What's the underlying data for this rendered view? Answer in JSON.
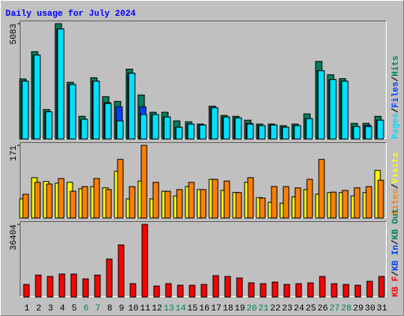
{
  "chart_data": [
    {
      "type": "bar",
      "title": "Daily usage for July 2024",
      "separator": "/",
      "ylim": [
        0,
        5083
      ],
      "yticks": [
        5083
      ],
      "series": [
        {
          "name": "Hits",
          "color": "#00805c",
          "values": [
            2650,
            3850,
            1300,
            5083,
            2500,
            1000,
            2700,
            1870,
            1660,
            3080,
            1940,
            1180,
            1180,
            800,
            760,
            660,
            1450,
            1040,
            1000,
            830,
            660,
            660,
            590,
            660,
            1110,
            3420,
            2830,
            2660,
            690,
            690,
            1000
          ]
        },
        {
          "name": "Files",
          "color": "#0040ff",
          "values": [
            2550,
            3700,
            1200,
            4850,
            2400,
            870,
            2550,
            1600,
            1420,
            2900,
            1420,
            1080,
            970,
            520,
            660,
            620,
            1380,
            970,
            930,
            690,
            590,
            620,
            520,
            590,
            900,
            3010,
            2620,
            2550,
            550,
            600,
            830
          ]
        },
        {
          "name": "Pages",
          "color": "#00e0ff",
          "values": [
            2550,
            3700,
            1200,
            4850,
            2400,
            870,
            2550,
            1570,
            800,
            2900,
            1080,
            1080,
            970,
            520,
            660,
            620,
            1380,
            970,
            930,
            660,
            590,
            620,
            520,
            590,
            900,
            3010,
            2620,
            2550,
            550,
            550,
            830
          ]
        }
      ]
    },
    {
      "type": "bar",
      "separator": "/",
      "ylim": [
        0,
        171
      ],
      "yticks": [
        171
      ],
      "series": [
        {
          "name": "Visits",
          "color": "#ffff00",
          "values": [
            45,
            95,
            86,
            82,
            84,
            69,
            74,
            71,
            110,
            45,
            87,
            45,
            63,
            52,
            74,
            67,
            91,
            65,
            60,
            84,
            48,
            37,
            35,
            50,
            67,
            56,
            60,
            60,
            52,
            60,
            112
          ]
        },
        {
          "name": "Sites",
          "color": "#ff8000",
          "values": [
            56,
            84,
            80,
            93,
            63,
            74,
            93,
            67,
            138,
            74,
            171,
            84,
            63,
            67,
            84,
            67,
            91,
            87,
            60,
            95,
            47,
            74,
            74,
            71,
            91,
            138,
            61,
            65,
            71,
            74,
            89
          ]
        }
      ]
    },
    {
      "type": "bar",
      "separator": "/",
      "ylim": [
        0,
        36404
      ],
      "yticks": [
        36404
      ],
      "series": [
        {
          "name": "KB F",
          "color": "#ff0000",
          "values": [
            6300,
            11000,
            10300,
            11500,
            11500,
            9100,
            11000,
            19000,
            26100,
            6700,
            36404,
            5500,
            6700,
            5900,
            5900,
            6300,
            10700,
            10300,
            9500,
            7100,
            6700,
            7500,
            6300,
            6700,
            7100,
            10300,
            6700,
            6300,
            5900,
            7900,
            10300
          ]
        }
      ],
      "extra_legend": [
        {
          "name": "KB In",
          "color": "#0040ff"
        },
        {
          "name": "KB Out",
          "color": "#00805c"
        }
      ],
      "categories": [
        "1",
        "2",
        "3",
        "4",
        "5",
        "6",
        "7",
        "8",
        "9",
        "10",
        "11",
        "12",
        "13",
        "14",
        "15",
        "16",
        "17",
        "18",
        "19",
        "20",
        "21",
        "22",
        "23",
        "24",
        "25",
        "26",
        "27",
        "28",
        "29",
        "30",
        "31"
      ],
      "category_colors": [
        "#000000",
        "#000000",
        "#000000",
        "#000000",
        "#000000",
        "#00805c",
        "#00805c",
        "#000000",
        "#000000",
        "#000000",
        "#000000",
        "#000000",
        "#00805c",
        "#00805c",
        "#000000",
        "#000000",
        "#000000",
        "#000000",
        "#000000",
        "#00805c",
        "#00805c",
        "#000000",
        "#000000",
        "#000000",
        "#000000",
        "#000000",
        "#00805c",
        "#00805c",
        "#000000",
        "#000000",
        "#000000"
      ]
    }
  ]
}
